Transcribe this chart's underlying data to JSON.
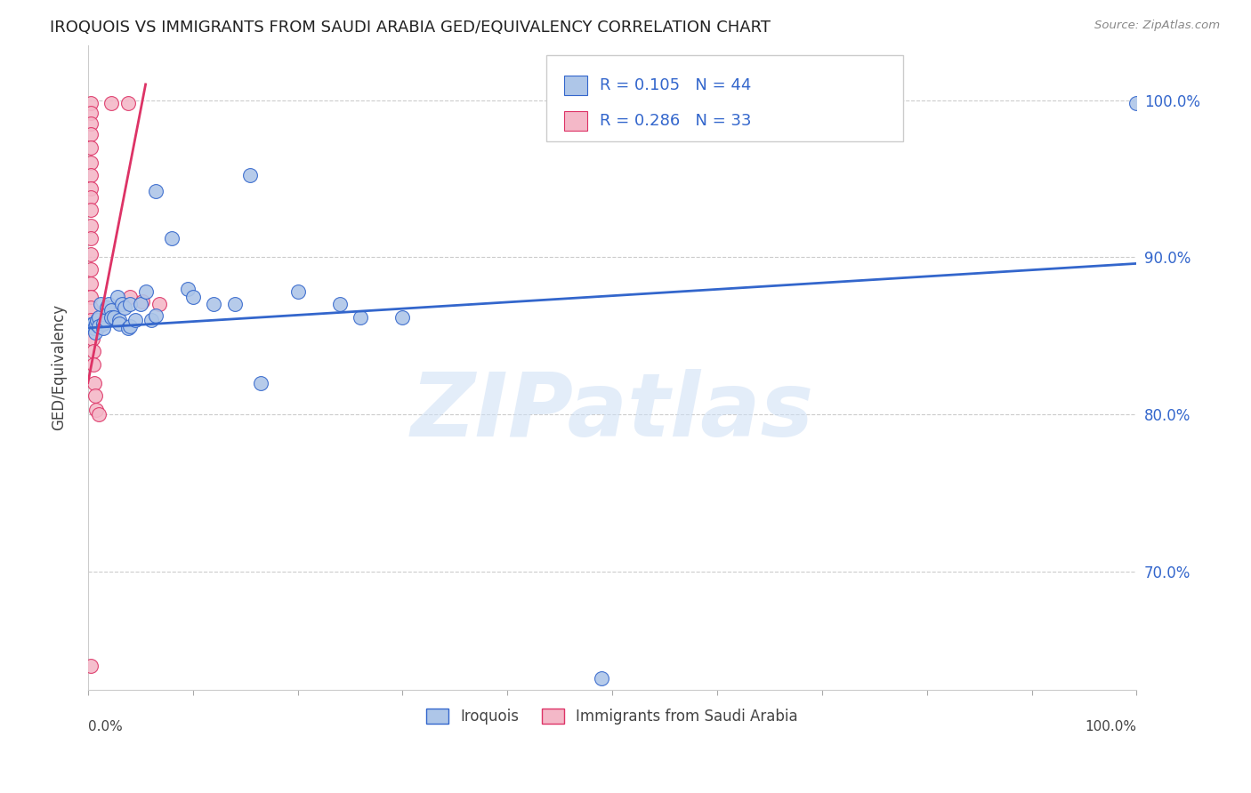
{
  "title": "IROQUOIS VS IMMIGRANTS FROM SAUDI ARABIA GED/EQUIVALENCY CORRELATION CHART",
  "source": "Source: ZipAtlas.com",
  "ylabel": "GED/Equivalency",
  "legend_label1": "Iroquois",
  "legend_label2": "Immigrants from Saudi Arabia",
  "R1": 0.105,
  "N1": 44,
  "R2": 0.286,
  "N2": 33,
  "watermark": "ZIPatlas",
  "xlim": [
    0.0,
    1.0
  ],
  "ylim": [
    0.625,
    1.035
  ],
  "yticks": [
    0.7,
    0.8,
    0.9,
    1.0
  ],
  "ytick_labels_right": [
    "70.0%",
    "80.0%",
    "90.0%",
    "100.0%"
  ],
  "color_blue": "#aec6e8",
  "color_pink": "#f4b8c8",
  "trendline_blue": "#3366cc",
  "trendline_pink": "#dd3366",
  "blue_scatter": [
    [
      0.003,
      0.857
    ],
    [
      0.005,
      0.858
    ],
    [
      0.006,
      0.855
    ],
    [
      0.007,
      0.852
    ],
    [
      0.008,
      0.858
    ],
    [
      0.009,
      0.86
    ],
    [
      0.01,
      0.862
    ],
    [
      0.01,
      0.856
    ],
    [
      0.012,
      0.87
    ],
    [
      0.015,
      0.858
    ],
    [
      0.015,
      0.855
    ],
    [
      0.017,
      0.86
    ],
    [
      0.018,
      0.868
    ],
    [
      0.02,
      0.87
    ],
    [
      0.022,
      0.866
    ],
    [
      0.022,
      0.862
    ],
    [
      0.025,
      0.862
    ],
    [
      0.028,
      0.875
    ],
    [
      0.03,
      0.86
    ],
    [
      0.03,
      0.858
    ],
    [
      0.032,
      0.87
    ],
    [
      0.035,
      0.868
    ],
    [
      0.038,
      0.855
    ],
    [
      0.04,
      0.856
    ],
    [
      0.04,
      0.87
    ],
    [
      0.045,
      0.86
    ],
    [
      0.05,
      0.87
    ],
    [
      0.055,
      0.878
    ],
    [
      0.06,
      0.86
    ],
    [
      0.065,
      0.863
    ],
    [
      0.065,
      0.942
    ],
    [
      0.08,
      0.912
    ],
    [
      0.095,
      0.88
    ],
    [
      0.1,
      0.875
    ],
    [
      0.12,
      0.87
    ],
    [
      0.14,
      0.87
    ],
    [
      0.155,
      0.952
    ],
    [
      0.165,
      0.82
    ],
    [
      0.2,
      0.878
    ],
    [
      0.24,
      0.87
    ],
    [
      0.26,
      0.862
    ],
    [
      0.3,
      0.862
    ],
    [
      0.49,
      0.632
    ],
    [
      1.0,
      0.998
    ]
  ],
  "pink_scatter": [
    [
      0.003,
      0.998
    ],
    [
      0.003,
      0.992
    ],
    [
      0.003,
      0.985
    ],
    [
      0.003,
      0.978
    ],
    [
      0.003,
      0.97
    ],
    [
      0.003,
      0.96
    ],
    [
      0.003,
      0.952
    ],
    [
      0.003,
      0.944
    ],
    [
      0.003,
      0.938
    ],
    [
      0.003,
      0.93
    ],
    [
      0.003,
      0.92
    ],
    [
      0.003,
      0.912
    ],
    [
      0.003,
      0.902
    ],
    [
      0.003,
      0.892
    ],
    [
      0.003,
      0.883
    ],
    [
      0.003,
      0.875
    ],
    [
      0.003,
      0.868
    ],
    [
      0.003,
      0.86
    ],
    [
      0.004,
      0.855
    ],
    [
      0.004,
      0.848
    ],
    [
      0.005,
      0.84
    ],
    [
      0.005,
      0.832
    ],
    [
      0.006,
      0.82
    ],
    [
      0.007,
      0.812
    ],
    [
      0.008,
      0.803
    ],
    [
      0.01,
      0.8
    ],
    [
      0.018,
      0.865
    ],
    [
      0.022,
      0.998
    ],
    [
      0.038,
      0.998
    ],
    [
      0.04,
      0.875
    ],
    [
      0.052,
      0.872
    ],
    [
      0.068,
      0.87
    ],
    [
      0.003,
      0.64
    ]
  ],
  "blue_trend_x": [
    0.0,
    1.0
  ],
  "blue_trend_y": [
    0.855,
    0.896
  ],
  "pink_trend_x": [
    0.0,
    0.055
  ],
  "pink_trend_y": [
    0.82,
    1.01
  ]
}
